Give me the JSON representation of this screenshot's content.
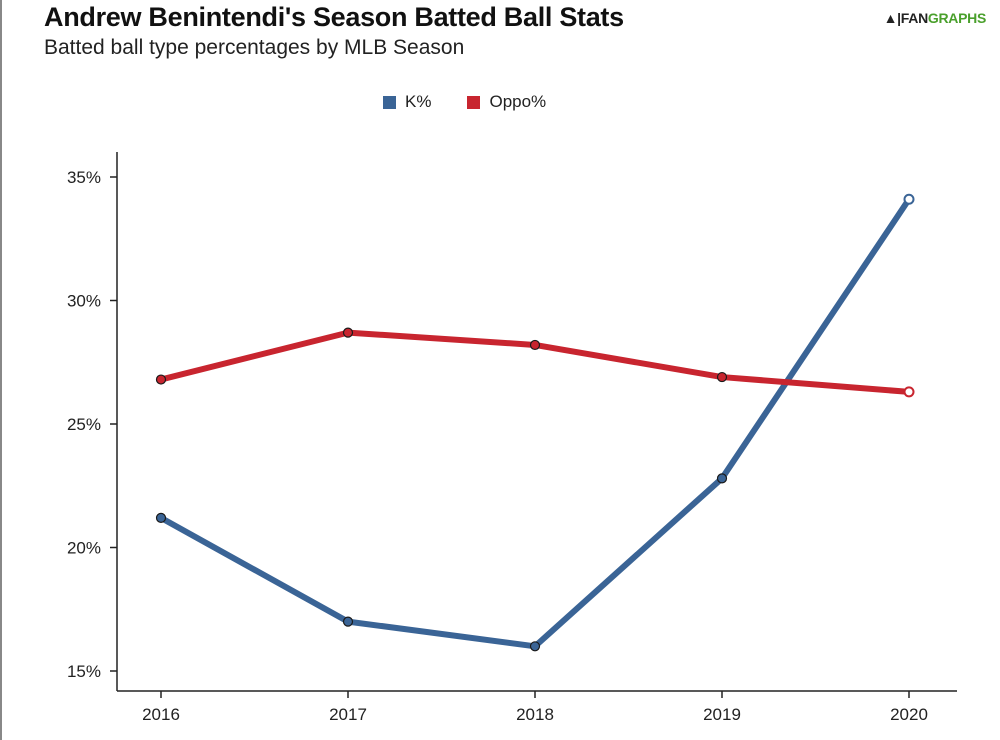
{
  "chart_data": {
    "type": "line",
    "title": "Andrew Benintendi's Season Batted Ball Stats",
    "subtitle": "Batted ball type percentages by MLB Season",
    "categories": [
      "2016",
      "2017",
      "2018",
      "2019",
      "2020"
    ],
    "series": [
      {
        "name": "K%",
        "color": "#3a6496",
        "values": [
          21.2,
          17.0,
          16.0,
          22.8,
          34.1
        ]
      },
      {
        "name": "Oppo%",
        "color": "#c8252f",
        "values": [
          26.8,
          28.7,
          28.2,
          26.9,
          26.3
        ]
      }
    ],
    "xlabel": "",
    "ylabel": "",
    "ylim": [
      14,
      36
    ],
    "yticks": [
      15,
      20,
      25,
      30,
      35
    ],
    "ytick_labels": [
      "15%",
      "20%",
      "25%",
      "30%",
      "35%"
    ],
    "legend_position": "top-center",
    "grid": false
  },
  "branding": {
    "mark": "▲|",
    "part_a": "FAN",
    "part_b": "GRAPHS",
    "accent": "#4aa02c"
  }
}
